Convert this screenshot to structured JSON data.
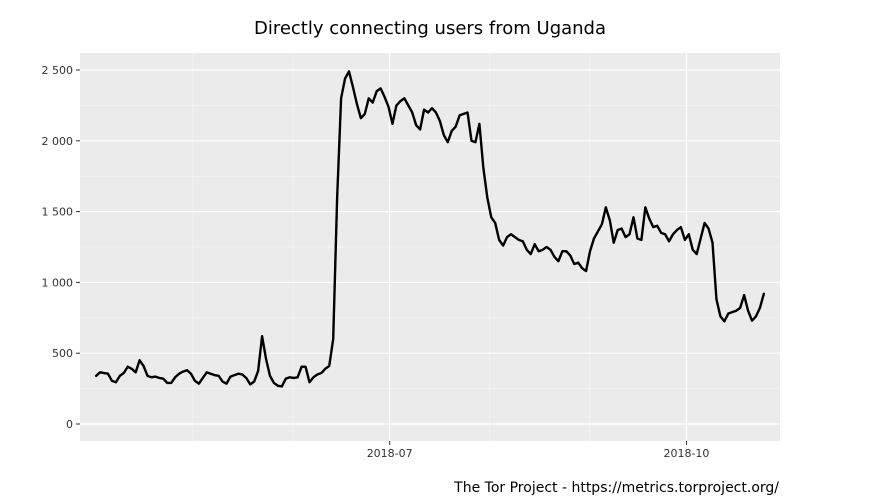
{
  "chart_data": {
    "type": "line",
    "title": "Directly connecting users from Uganda",
    "xlabel": "",
    "ylabel": "",
    "credit": "The Tor Project - https://metrics.torproject.org/",
    "x_start": "2018-04-01",
    "x_end": "2018-10-25",
    "xlim": [
      "2018-03-27",
      "2018-10-30"
    ],
    "ylim": [
      -120,
      2620
    ],
    "y_ticks": [
      0,
      500,
      1000,
      1500,
      2000,
      2500
    ],
    "y_tick_labels": [
      "0",
      "500",
      "1 000",
      "1 500",
      "2 000",
      "2 500"
    ],
    "x_ticks": [
      {
        "date": "2018-07-01",
        "label": "2018-07"
      },
      {
        "date": "2018-10-01",
        "label": "2018-10"
      }
    ],
    "x_minor_ticks": [
      "2018-05-01",
      "2018-06-01",
      "2018-08-01",
      "2018-09-01"
    ],
    "grid": true,
    "line_color": "#000000",
    "series": [
      {
        "values": [
          340,
          365,
          360,
          355,
          305,
          295,
          340,
          360,
          405,
          390,
          365,
          450,
          410,
          340,
          330,
          335,
          325,
          320,
          290,
          290,
          330,
          355,
          370,
          380,
          355,
          305,
          285,
          325,
          365,
          355,
          345,
          340,
          300,
          285,
          335,
          345,
          355,
          350,
          325,
          280,
          300,
          375,
          620,
          460,
          340,
          290,
          270,
          265,
          320,
          330,
          325,
          330,
          405,
          405,
          295,
          330,
          350,
          360,
          390,
          410,
          600,
          1600,
          2300,
          2440,
          2490,
          2380,
          2260,
          2160,
          2190,
          2300,
          2270,
          2350,
          2370,
          2310,
          2240,
          2120,
          2250,
          2280,
          2300,
          2250,
          2200,
          2110,
          2080,
          2220,
          2200,
          2230,
          2200,
          2140,
          2040,
          1990,
          2070,
          2100,
          2180,
          2190,
          2200,
          2000,
          1990,
          2120,
          1810,
          1600,
          1460,
          1420,
          1300,
          1260,
          1320,
          1340,
          1320,
          1300,
          1290,
          1230,
          1200,
          1270,
          1220,
          1230,
          1250,
          1230,
          1180,
          1150,
          1220,
          1220,
          1190,
          1130,
          1140,
          1100,
          1080,
          1220,
          1310,
          1360,
          1410,
          1530,
          1440,
          1280,
          1370,
          1380,
          1320,
          1340,
          1460,
          1310,
          1300,
          1530,
          1450,
          1390,
          1400,
          1350,
          1340,
          1290,
          1340,
          1370,
          1390,
          1300,
          1340,
          1230,
          1200,
          1310,
          1420,
          1380,
          1280,
          880,
          760,
          725,
          780,
          790,
          800,
          820,
          910,
          800,
          730,
          760,
          820,
          920
        ]
      }
    ]
  }
}
